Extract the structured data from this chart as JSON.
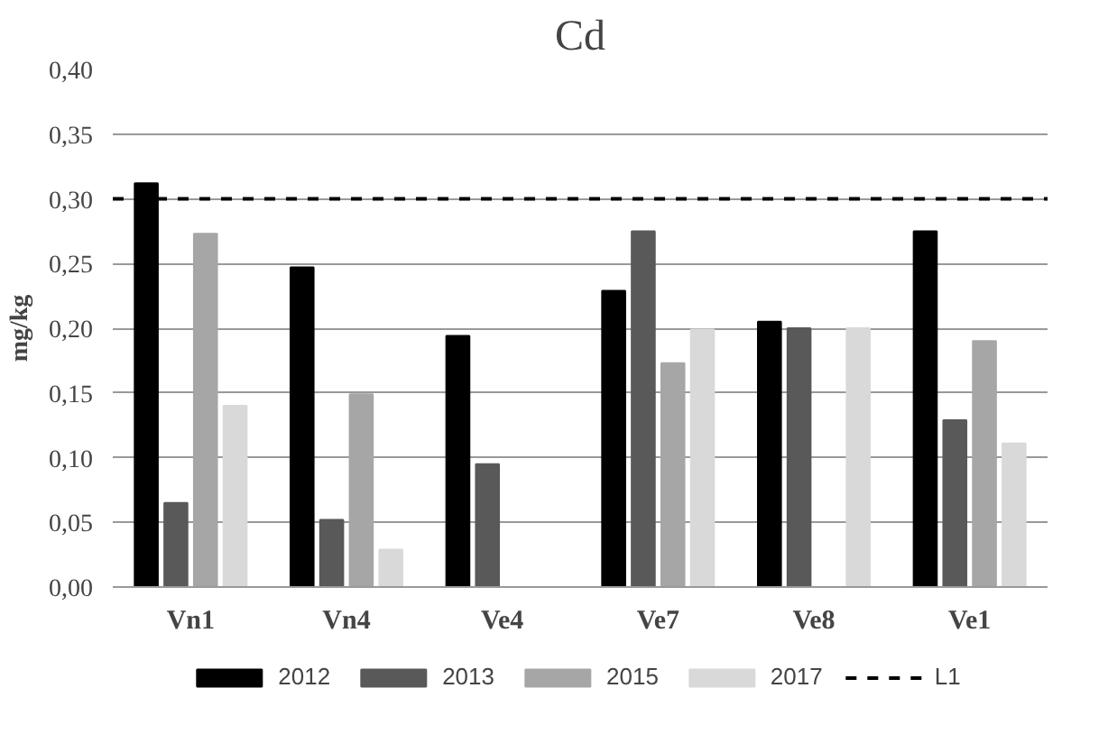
{
  "chart_data": {
    "type": "bar",
    "title": "Cd",
    "ylabel": "mg/kg",
    "categories": [
      "Vn1",
      "Vn4",
      "Ve4",
      "Ve7",
      "Ve8",
      "Ve1"
    ],
    "series": [
      {
        "name": "2012",
        "color": "#000000",
        "values": [
          0.312,
          0.247,
          0.194,
          0.229,
          0.205,
          0.275
        ]
      },
      {
        "name": "2013",
        "color": "#595959",
        "values": [
          0.065,
          0.052,
          0.095,
          0.275,
          0.2,
          0.129
        ]
      },
      {
        "name": "2015",
        "color": "#a6a6a6",
        "values": [
          0.273,
          0.149,
          null,
          0.173,
          null,
          0.19
        ]
      },
      {
        "name": "2017",
        "color": "#d9d9d9",
        "values": [
          0.14,
          0.029,
          null,
          0.199,
          0.2,
          0.111
        ]
      }
    ],
    "ref_lines": [
      {
        "axis": "y",
        "value": 0.3,
        "label": "L1",
        "color": "#000000",
        "line_style": "dashed"
      }
    ],
    "ylim": [
      0,
      0.4
    ],
    "yticks": [
      {
        "value": 0,
        "label": "0,00"
      },
      {
        "value": 0.05,
        "label": "0,05"
      },
      {
        "value": 0.1,
        "label": "0,10"
      },
      {
        "value": 0.15,
        "label": "0,15"
      },
      {
        "value": 0.2,
        "label": "0,20"
      },
      {
        "value": 0.25,
        "label": "0,25"
      },
      {
        "value": 0.3,
        "label": "0,30"
      },
      {
        "value": 0.35,
        "label": "0,35"
      },
      {
        "value": 0.4,
        "label": "0,40"
      }
    ],
    "grid": "y",
    "legend": "bottom"
  }
}
